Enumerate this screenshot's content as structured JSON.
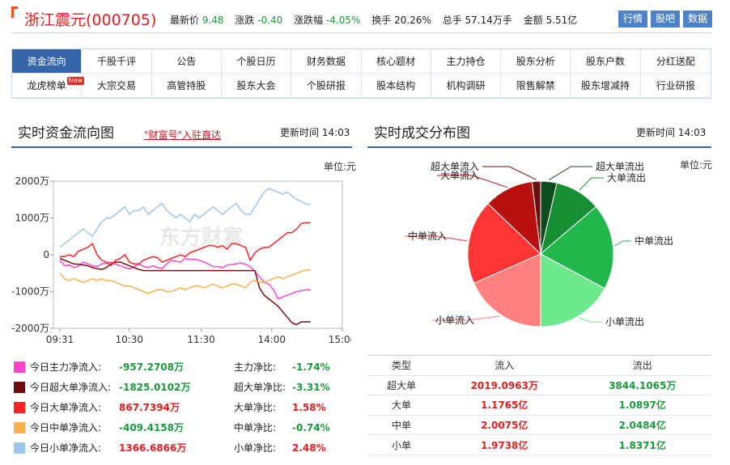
{
  "header": {
    "title": "浙江震元(000705)",
    "quotes": [
      {
        "label": "最新价",
        "value": "9.48"
      },
      {
        "label": "涨跌",
        "value": "-0.40"
      },
      {
        "label": "涨跌幅",
        "value": "-4.05%"
      },
      {
        "label": "换手",
        "value": "20.26%"
      },
      {
        "label": "总手",
        "value": "57.14万手"
      },
      {
        "label": "金额",
        "value": "5.51亿"
      }
    ],
    "buttons": [
      "行情",
      "股吧",
      "数据"
    ]
  },
  "nav": {
    "row1": [
      "资金流向",
      "千股千评",
      "公告",
      "个股日历",
      "财务数据",
      "核心题材",
      "主力持仓",
      "股东分析",
      "股东户数",
      "分红送配"
    ],
    "row2": [
      "龙虎榜单",
      "大宗交易",
      "高管持股",
      "股东大会",
      "个股研报",
      "股本结构",
      "机构调研",
      "限售解禁",
      "股东增减持",
      "行业研报"
    ],
    "new_badge": "New"
  },
  "left": {
    "title": "实时资金流向图",
    "wealth_link": "\"财富号\"入驻直达",
    "update_label": "更新时间",
    "update_time": "14:03",
    "unit": "单位:元"
  },
  "right": {
    "title": "实时成交分布图",
    "update_label": "更新时间",
    "update_time": "14:03",
    "unit": "单位:元"
  },
  "flow_chart": {
    "type": "line",
    "y_ticks": [
      "2000万",
      "1000万",
      "0",
      "-1000万",
      "-2000万"
    ],
    "y_values": [
      2000,
      1000,
      0,
      -1000,
      -2000
    ],
    "ylim": [
      -2000,
      2000
    ],
    "x_ticks": [
      "09:31",
      "10:30",
      "11:30",
      "14:00",
      "15:00"
    ],
    "watermark": "东方财富",
    "series": [
      {
        "key": "main",
        "color": "#ff44c8",
        "values": [
          -150,
          -300,
          -280,
          -350,
          -310,
          -200,
          -250,
          -300,
          -320,
          -250,
          -230,
          -200,
          -260,
          -300,
          -350,
          -380,
          -330,
          -250,
          -320,
          -350,
          -300,
          -350,
          -380,
          -250,
          -150,
          -180,
          -200,
          -100,
          -130,
          -120,
          -150,
          -200,
          -250,
          -320,
          -320,
          -350,
          -280,
          -270,
          -250,
          -220,
          -260,
          -330,
          -450,
          -600,
          -750,
          -800,
          -950,
          -1200,
          -1150,
          -1100,
          -1050,
          -1000,
          -980,
          -950,
          -957
        ]
      },
      {
        "key": "super",
        "color": "#7b0f0f",
        "values": [
          -100,
          -150,
          -200,
          -250,
          -260,
          -280,
          -300,
          -350,
          -380,
          -400,
          -350,
          -250,
          -200,
          -200,
          -250,
          -300,
          -350,
          -400,
          -430,
          -430,
          -430,
          -430,
          -430,
          -430,
          -430,
          -430,
          -430,
          -430,
          -430,
          -430,
          -430,
          -430,
          -430,
          -430,
          -430,
          -430,
          -430,
          -430,
          -430,
          -430,
          -430,
          -430,
          -430,
          -900,
          -1100,
          -1200,
          -1300,
          -1400,
          -1550,
          -1700,
          -1850,
          -1900,
          -1825,
          -1825,
          -1825
        ]
      },
      {
        "key": "big",
        "color": "#ff2222",
        "values": [
          -50,
          -50,
          0,
          -50,
          100,
          150,
          200,
          300,
          0,
          -150,
          -200,
          -300,
          -150,
          -100,
          0,
          -200,
          -250,
          -250,
          -150,
          -100,
          -50,
          -80,
          -200,
          -150,
          -100,
          -50,
          0,
          -50,
          50,
          100,
          150,
          200,
          250,
          250,
          200,
          250,
          150,
          300,
          300,
          250,
          200,
          -150,
          50,
          150,
          200,
          200,
          300,
          400,
          500,
          600,
          600,
          700,
          850,
          870,
          868
        ]
      },
      {
        "key": "mid",
        "color": "#ffb04d",
        "values": [
          -500,
          -650,
          -700,
          -650,
          -700,
          -750,
          -700,
          -650,
          -700,
          -650,
          -700,
          -700,
          -750,
          -800,
          -850,
          -850,
          -900,
          -950,
          -1000,
          -1050,
          -1000,
          -950,
          -950,
          -1000,
          -1000,
          -950,
          -900,
          -950,
          -900,
          -850,
          -850,
          -900,
          -850,
          -800,
          -850,
          -900,
          -850,
          -800,
          -800,
          -850,
          -900,
          -750,
          -700,
          -750,
          -750,
          -700,
          -650,
          -600,
          -650,
          -600,
          -550,
          -500,
          -450,
          -420,
          -409
        ]
      },
      {
        "key": "small",
        "color": "#9cc6ec",
        "values": [
          200,
          300,
          400,
          500,
          600,
          700,
          600,
          500,
          700,
          900,
          1000,
          1000,
          1100,
          1200,
          1300,
          1100,
          1200,
          1200,
          1300,
          1100,
          1200,
          1300,
          1400,
          1200,
          1100,
          1000,
          1100,
          1000,
          900,
          1100,
          1000,
          1100,
          1200,
          1300,
          1200,
          1100,
          1200,
          1300,
          1400,
          1200,
          1100,
          1100,
          1300,
          1500,
          1700,
          1800,
          1750,
          1700,
          1650,
          1700,
          1600,
          1500,
          1450,
          1380,
          1367
        ]
      }
    ]
  },
  "legend": [
    {
      "color": "#ff44c8",
      "label": "今日主力净流入:",
      "value": "-957.2708万",
      "value_class": "green",
      "ratio_label": "主力净比:",
      "ratio": "-1.74%",
      "ratio_class": "green"
    },
    {
      "color": "#6b0d0d",
      "label": "今日超大单净流入:",
      "value": "-1825.0102万",
      "value_class": "green",
      "ratio_label": "超大单净比:",
      "ratio": "-3.31%",
      "ratio_class": "green"
    },
    {
      "color": "#ff2222",
      "label": "今日大单净流入:",
      "value": "867.7394万",
      "value_class": "red",
      "ratio_label": "大单净比:",
      "ratio": "1.58%",
      "ratio_class": "red"
    },
    {
      "color": "#ffb04d",
      "label": "今日中单净流入:",
      "value": "-409.4158万",
      "value_class": "green",
      "ratio_label": "中单净比:",
      "ratio": "-0.74%",
      "ratio_class": "green"
    },
    {
      "color": "#9cc6ec",
      "label": "今日小单净流入:",
      "value": "1366.6866万",
      "value_class": "red",
      "ratio_label": "小单净比:",
      "ratio": "2.48%",
      "ratio_class": "red"
    }
  ],
  "pie_chart": {
    "type": "pie",
    "slices": [
      {
        "label": "超大单流入",
        "value": 2019.0963,
        "color": "#6b0d0d"
      },
      {
        "label": "超大单流出",
        "value": 3844.1065,
        "color": "#0b4d1f"
      },
      {
        "label": "大单流出",
        "value": 10897,
        "color": "#178f34"
      },
      {
        "label": "中单流出",
        "value": 20484,
        "color": "#22b74b"
      },
      {
        "label": "小单流出",
        "value": 18371,
        "color": "#6ee88c"
      },
      {
        "label": "小单流入",
        "value": 19738,
        "color": "#ff8080"
      },
      {
        "label": "中单流入",
        "value": 20075,
        "color": "#ff3434"
      },
      {
        "label": "大单流入",
        "value": 11765,
        "color": "#b80f0f"
      }
    ]
  },
  "dist_table": {
    "headers": [
      "类型",
      "流入",
      "流出"
    ],
    "rows": [
      {
        "type": "超大单",
        "in": "2019.0963万",
        "out": "3844.1065万"
      },
      {
        "type": "大单",
        "in": "1.1765亿",
        "out": "1.0897亿"
      },
      {
        "type": "中单",
        "in": "2.0075亿",
        "out": "2.0484亿"
      },
      {
        "type": "小单",
        "in": "1.9738亿",
        "out": "1.8371亿"
      }
    ]
  }
}
